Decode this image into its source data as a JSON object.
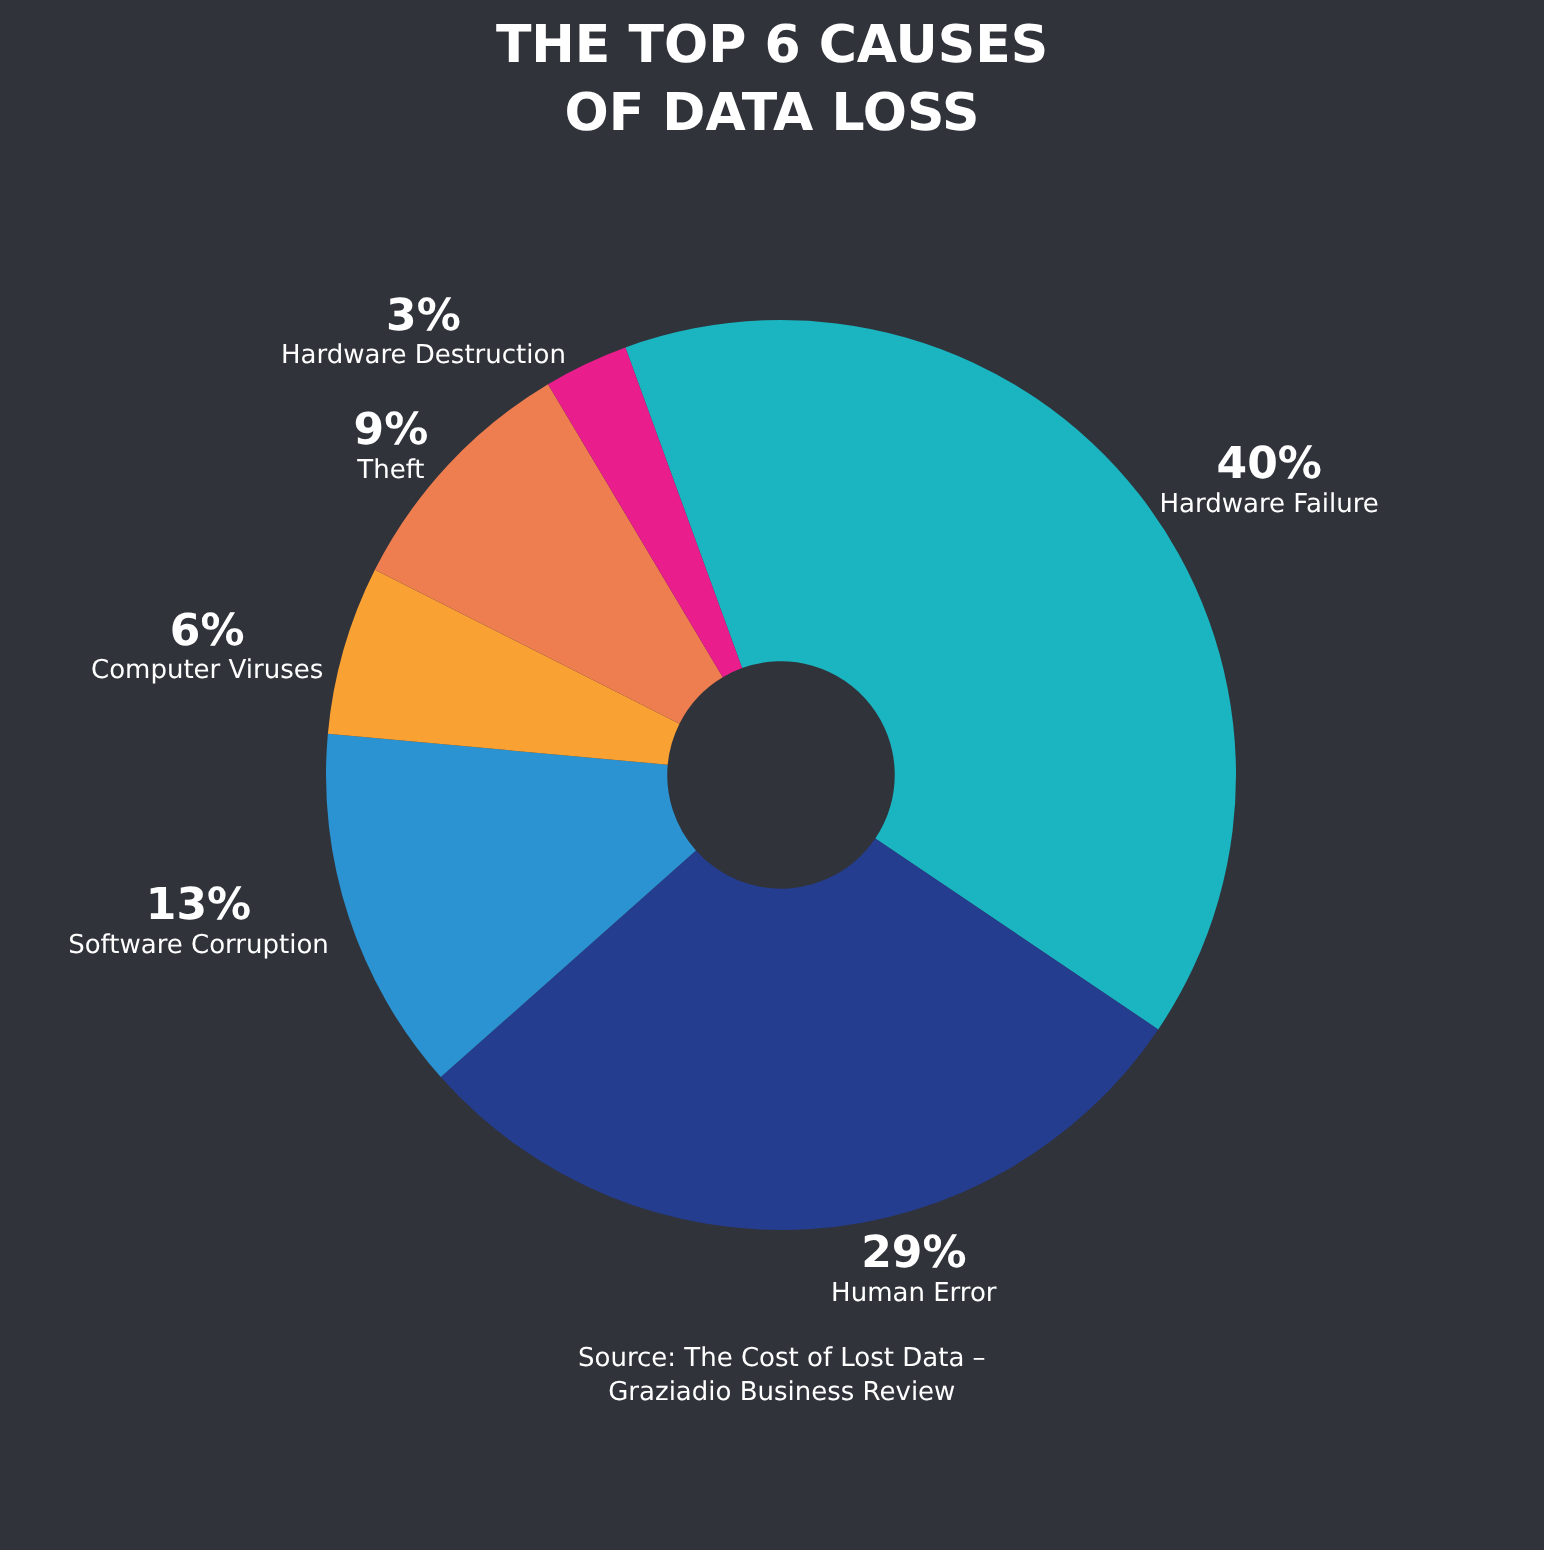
{
  "chart_data": {
    "type": "donut",
    "title": "THE TOP 6 CAUSES\nOF DATA LOSS",
    "categories": [
      "Hardware Failure",
      "Human Error",
      "Software Corruption",
      "Computer Viruses",
      "Theft",
      "Hardware Destruction"
    ],
    "values": [
      40,
      29,
      13,
      6,
      9,
      3
    ],
    "value_labels": [
      "40%",
      "29%",
      "13%",
      "6%",
      "9%",
      "3%"
    ],
    "colors": [
      "#1ab5c1",
      "#253d8f",
      "#2b93d1",
      "#f9a233",
      "#ee7e4f",
      "#e91e8c"
    ],
    "annotations": [
      "Source: The Cost of Lost Data –\nGraziadio Business Review"
    ],
    "legend": false
  }
}
